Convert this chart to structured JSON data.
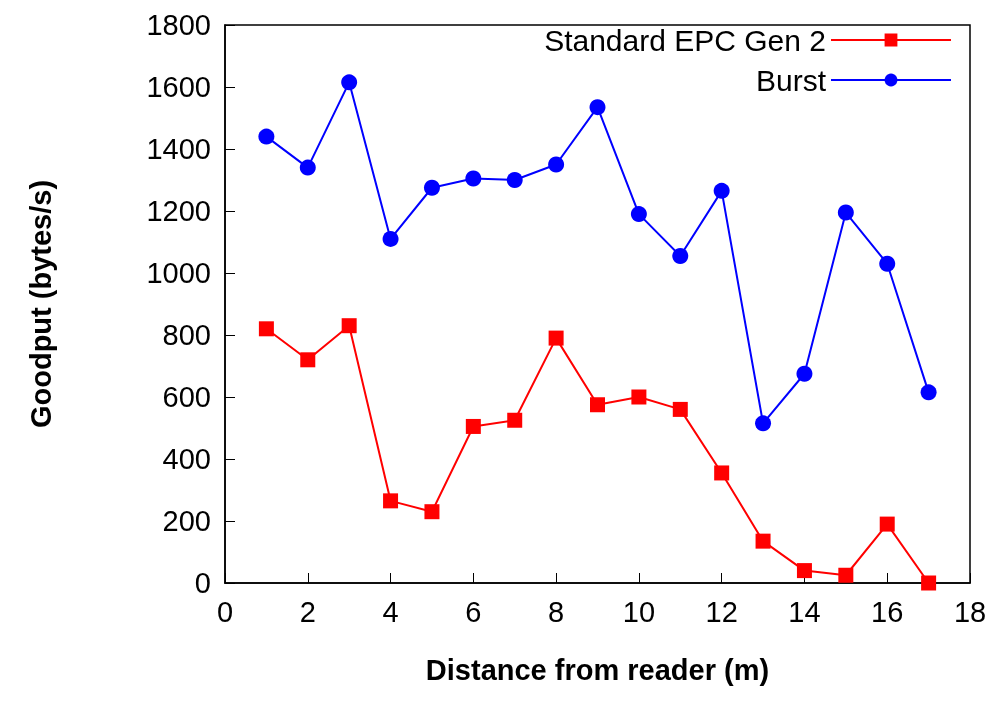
{
  "chart_data": {
    "type": "line",
    "xlabel": "Distance from reader (m)",
    "ylabel": "Goodput (bytes/s)",
    "x": [
      1,
      2,
      3,
      4,
      5,
      6,
      7,
      8,
      9,
      10,
      11,
      12,
      13,
      14,
      15,
      16,
      17
    ],
    "series": [
      {
        "name": "Standard EPC Gen 2",
        "color": "#ff0000",
        "marker": "square",
        "values": [
          820,
          720,
          830,
          265,
          230,
          505,
          525,
          790,
          575,
          600,
          560,
          355,
          135,
          40,
          25,
          190,
          0
        ]
      },
      {
        "name": "Burst",
        "color": "#0000ff",
        "marker": "circle",
        "values": [
          1440,
          1340,
          1615,
          1110,
          1275,
          1305,
          1300,
          1350,
          1535,
          1190,
          1055,
          1265,
          515,
          675,
          1195,
          1030,
          615
        ]
      }
    ],
    "xlim": [
      0,
      18
    ],
    "xticks": [
      0,
      2,
      4,
      6,
      8,
      10,
      12,
      14,
      16,
      18
    ],
    "ylim": [
      0,
      1800
    ],
    "yticks": [
      0,
      200,
      400,
      600,
      800,
      1000,
      1200,
      1400,
      1600,
      1800
    ],
    "legend": "top right",
    "grid": false,
    "line_style": "solid"
  }
}
